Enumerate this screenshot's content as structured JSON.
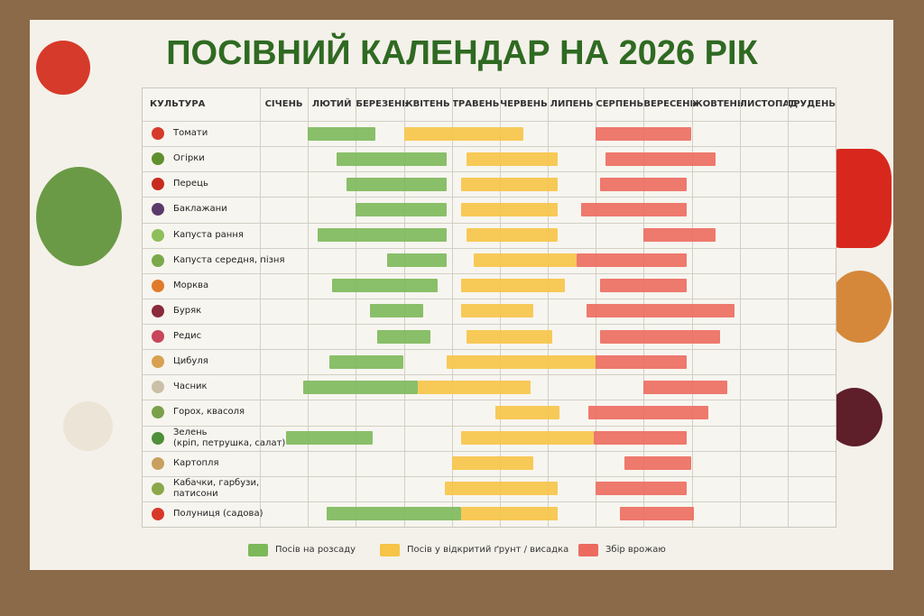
{
  "chart_data": {
    "type": "gantt",
    "title": "ПОСІВНИЙ КАЛЕНДАР НА 2026 РІК",
    "row_header": "КУЛЬТУРА",
    "categories": [
      "СІЧЕНЬ",
      "ЛЮТИЙ",
      "БЕРЕЗЕНЬ",
      "КВІТЕНЬ",
      "ТРАВЕНЬ",
      "ЧЕРВЕНЬ",
      "ЛИПЕНЬ",
      "СЕРПЕНЬ",
      "ВЕРЕСЕНЬ",
      "ЖОВТЕНЬ",
      "ЛИСТОПАД",
      "ГРУДЕНЬ"
    ],
    "xlim": [
      0,
      12
    ],
    "crops": [
      "Томати",
      "Огірки",
      "Перець",
      "Баклажани",
      "Капуста рання",
      "Капуста середня, пізня",
      "Морква",
      "Буряк",
      "Редис",
      "Цибуля",
      "Часник",
      "Горох, квасоля",
      "Зелень\n(кріп, петрушка, салат)",
      "Картопля",
      "Кабачки, гарбузи,\nпатисони",
      "Полуниця (садова)"
    ],
    "series": [
      {
        "name": "Посів на розсаду",
        "color": "#7cb95a",
        "values": [
          [
            1.0,
            2.4
          ],
          [
            1.6,
            3.9
          ],
          [
            1.8,
            3.9
          ],
          [
            2.0,
            3.9
          ],
          [
            1.2,
            3.9
          ],
          [
            2.65,
            3.9
          ],
          [
            1.5,
            3.7
          ],
          [
            2.3,
            3.4
          ],
          [
            2.45,
            3.55
          ],
          [
            1.45,
            3.0
          ],
          [
            0.9,
            3.3
          ],
          null,
          [
            0.55,
            2.35
          ],
          null,
          null,
          [
            1.4,
            4.2
          ]
        ]
      },
      {
        "name": "Посів у відкритий ґрунт / висадка",
        "color": "#f6c446",
        "values": [
          [
            3.0,
            5.5
          ],
          [
            4.3,
            6.2
          ],
          [
            4.2,
            6.2
          ],
          [
            4.2,
            6.2
          ],
          [
            4.3,
            6.2
          ],
          [
            4.45,
            6.6
          ],
          [
            4.2,
            6.35
          ],
          [
            4.2,
            5.7
          ],
          [
            4.3,
            6.1
          ],
          [
            3.9,
            7.0
          ],
          [
            3.3,
            5.65
          ],
          [
            4.9,
            6.25
          ],
          [
            4.2,
            6.95
          ],
          [
            4.0,
            5.7
          ],
          [
            3.85,
            6.2
          ],
          [
            4.2,
            6.2
          ]
        ]
      },
      {
        "name": "Збір врожаю",
        "color": "#ec6b5e",
        "values": [
          [
            7.0,
            9.0
          ],
          [
            7.2,
            9.5
          ],
          [
            7.1,
            8.9
          ],
          [
            6.7,
            8.9
          ],
          [
            8.0,
            9.5
          ],
          [
            6.6,
            8.9
          ],
          [
            7.1,
            8.9
          ],
          [
            6.8,
            9.9
          ],
          [
            7.1,
            9.6
          ],
          [
            7.0,
            8.9
          ],
          [
            8.0,
            9.75
          ],
          [
            6.85,
            9.35
          ],
          [
            6.95,
            8.9
          ],
          [
            7.6,
            9.0
          ],
          [
            7.0,
            8.9
          ],
          [
            7.5,
            9.05
          ]
        ]
      }
    ]
  }
}
